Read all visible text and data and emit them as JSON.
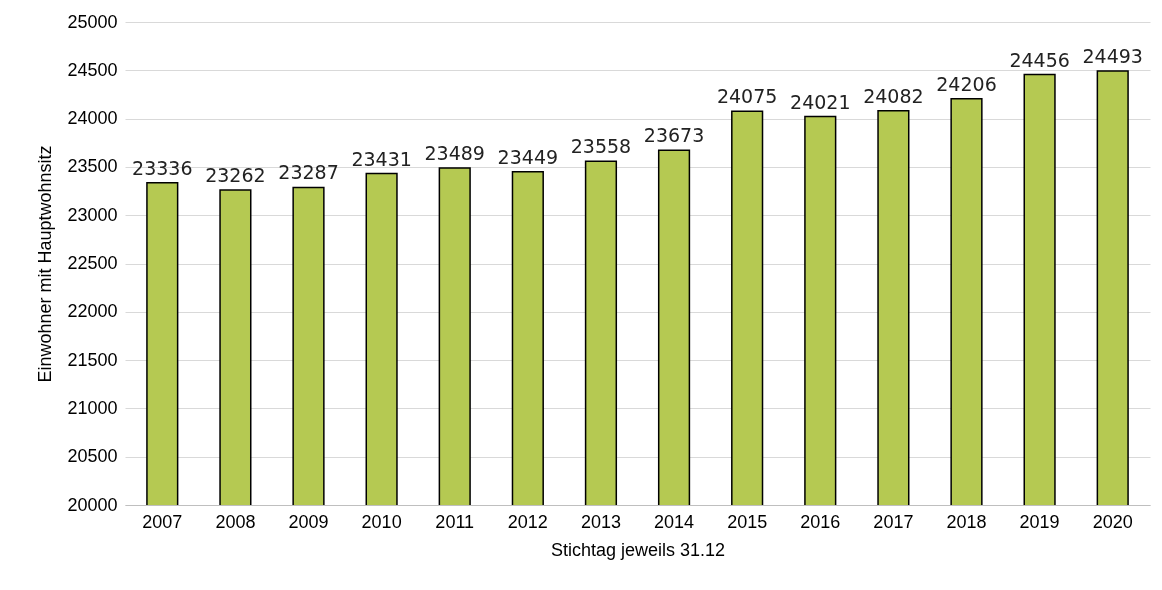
{
  "chart_data": {
    "type": "bar",
    "xlabel": "Stichtag jeweils 31.12",
    "ylabel": "Einwohner mit Hauptwohnsitz",
    "categories": [
      "2007",
      "2008",
      "2009",
      "2010",
      "2011",
      "2012",
      "2013",
      "2014",
      "2015",
      "2016",
      "2017",
      "2018",
      "2019",
      "2020"
    ],
    "values": [
      23336,
      23262,
      23287,
      23431,
      23489,
      23449,
      23558,
      23673,
      24075,
      24021,
      24082,
      24206,
      24456,
      24493
    ],
    "color": "#b5c952",
    "ylim": [
      20000,
      25000
    ],
    "yticks": [
      20000,
      20500,
      21000,
      21500,
      22000,
      22500,
      23000,
      23500,
      24000,
      24500,
      25000
    ],
    "grid": "y",
    "data_labels": true
  }
}
